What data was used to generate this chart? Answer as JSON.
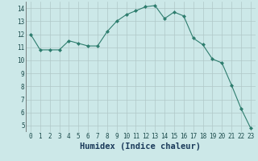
{
  "x": [
    0,
    1,
    2,
    3,
    4,
    5,
    6,
    7,
    8,
    9,
    10,
    11,
    12,
    13,
    14,
    15,
    16,
    17,
    18,
    19,
    20,
    21,
    22,
    23
  ],
  "y": [
    12.0,
    10.8,
    10.8,
    10.8,
    11.5,
    11.3,
    11.1,
    11.1,
    12.2,
    13.0,
    13.5,
    13.8,
    14.1,
    14.2,
    13.2,
    13.7,
    13.4,
    11.7,
    11.2,
    10.1,
    9.8,
    8.1,
    6.3,
    4.8
  ],
  "line_color": "#2e7d6e",
  "marker": "D",
  "marker_size": 2,
  "bg_color": "#cce8e8",
  "grid_color": "#b0c8c8",
  "xlabel": "Humidex (Indice chaleur)",
  "xlim": [
    -0.5,
    23.5
  ],
  "ylim": [
    4.5,
    14.5
  ],
  "yticks": [
    5,
    6,
    7,
    8,
    9,
    10,
    11,
    12,
    13,
    14
  ],
  "xticks": [
    0,
    1,
    2,
    3,
    4,
    5,
    6,
    7,
    8,
    9,
    10,
    11,
    12,
    13,
    14,
    15,
    16,
    17,
    18,
    19,
    20,
    21,
    22,
    23
  ],
  "tick_fontsize": 5.5,
  "xlabel_fontsize": 7.5
}
